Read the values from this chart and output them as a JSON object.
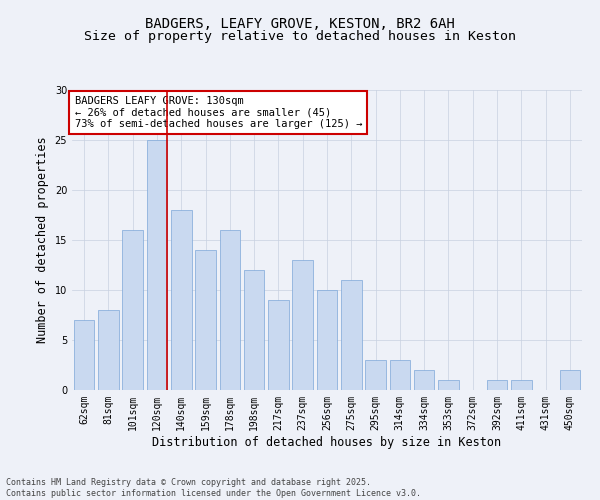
{
  "title_line1": "BADGERS, LEAFY GROVE, KESTON, BR2 6AH",
  "title_line2": "Size of property relative to detached houses in Keston",
  "xlabel": "Distribution of detached houses by size in Keston",
  "ylabel": "Number of detached properties",
  "categories": [
    "62sqm",
    "81sqm",
    "101sqm",
    "120sqm",
    "140sqm",
    "159sqm",
    "178sqm",
    "198sqm",
    "217sqm",
    "237sqm",
    "256sqm",
    "275sqm",
    "295sqm",
    "314sqm",
    "334sqm",
    "353sqm",
    "372sqm",
    "392sqm",
    "411sqm",
    "431sqm",
    "450sqm"
  ],
  "values": [
    7,
    8,
    16,
    25,
    18,
    14,
    16,
    12,
    9,
    13,
    10,
    11,
    3,
    3,
    2,
    1,
    0,
    1,
    1,
    0,
    2
  ],
  "bar_color": "#c9d9f0",
  "bar_edge_color": "#7da7d9",
  "grid_color": "#c8d0e0",
  "background_color": "#eef1f8",
  "vline_x_index": 3,
  "vline_color": "#cc0000",
  "annotation_text": "BADGERS LEAFY GROVE: 130sqm\n← 26% of detached houses are smaller (45)\n73% of semi-detached houses are larger (125) →",
  "annotation_box_color": "#ffffff",
  "annotation_edge_color": "#cc0000",
  "ylim": [
    0,
    30
  ],
  "yticks": [
    0,
    5,
    10,
    15,
    20,
    25,
    30
  ],
  "footer_text": "Contains HM Land Registry data © Crown copyright and database right 2025.\nContains public sector information licensed under the Open Government Licence v3.0.",
  "title_fontsize": 10,
  "subtitle_fontsize": 9.5,
  "axis_label_fontsize": 8.5,
  "tick_fontsize": 7,
  "annotation_fontsize": 7.5,
  "footer_fontsize": 6
}
